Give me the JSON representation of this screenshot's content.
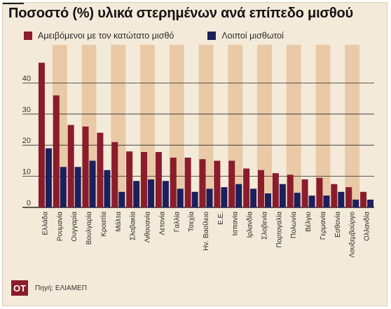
{
  "title": "Ποσοστό (%) υλικά στερημένων ανά επίπεδο μισθού",
  "source": "Πηγή: ΕΛΙΑΜΕΠ",
  "logo": "OT",
  "colors": {
    "background": "#f4ead9",
    "band": "#e9c9a6",
    "minimum_wage": "#8a1c2c",
    "other": "#1b1f5e",
    "grid": "#2a2a2a"
  },
  "chart_data": {
    "type": "bar",
    "title": "Ποσοστό (%) υλικά στερημένων ανά επίπεδο μισθού",
    "xlabel": "",
    "ylabel": "",
    "ylim": [
      0,
      50
    ],
    "yticks": [
      0,
      10,
      20,
      30,
      40
    ],
    "grid": true,
    "legend_position": "top-left",
    "categories": [
      "Ελλάδα",
      "Ρουμανία",
      "Ουγγαρία",
      "Βουλγαρία",
      "Κροατία",
      "Μάλτα",
      "Σλοβακία",
      "Λιθουανία",
      "Λετονία",
      "Γαλλία",
      "Τσεχία",
      "Ην. Βασίλειο",
      "Ε.Ε.",
      "Ισπανία",
      "Ιρλανδία",
      "Σλοβενία",
      "Πορτογαλία",
      "Πολωνία",
      "Βέλγιο",
      "Γερμανία",
      "Εσθονία",
      "Λουξεμβούργο",
      "Ολλανδία"
    ],
    "series": [
      {
        "name": "Αμειβόμενοι με τον κατώτατο μισθό",
        "color": "#8a1c2c",
        "values": [
          46.5,
          36,
          26.5,
          26,
          24,
          21,
          18,
          17.8,
          17.8,
          16,
          16,
          15.5,
          15,
          15,
          12.5,
          12,
          11,
          10.5,
          9,
          9.5,
          7.5,
          6.5,
          5
        ]
      },
      {
        "name": "Λοιποί μισθωτοί",
        "color": "#1b1f5e",
        "values": [
          19,
          13,
          13,
          15,
          12,
          5,
          8.5,
          9,
          8.5,
          6,
          5,
          6,
          6.5,
          7.5,
          6,
          4.5,
          7.5,
          4.7,
          3.8,
          3.8,
          5,
          2.5,
          2.5
        ]
      }
    ]
  }
}
